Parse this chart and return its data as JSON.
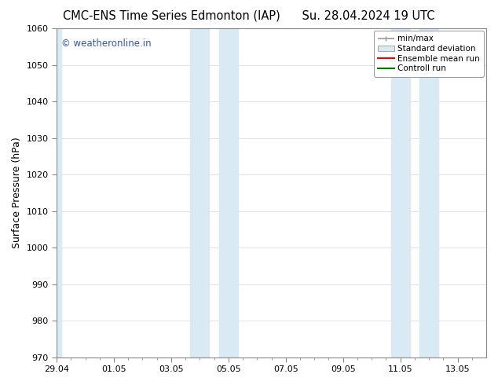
{
  "title_left": "CMC-ENS Time Series Edmonton (IAP)",
  "title_right": "Su. 28.04.2024 19 UTC",
  "ylabel": "Surface Pressure (hPa)",
  "ylim": [
    970,
    1060
  ],
  "yticks": [
    970,
    980,
    990,
    1000,
    1010,
    1020,
    1030,
    1040,
    1050,
    1060
  ],
  "xtick_labels": [
    "29.04",
    "01.05",
    "03.05",
    "05.05",
    "07.05",
    "09.05",
    "11.05",
    "13.05"
  ],
  "xtick_positions": [
    0,
    2,
    4,
    6,
    8,
    10,
    12,
    14
  ],
  "xlim": [
    0,
    15
  ],
  "shaded_regions": [
    {
      "start": -0.1,
      "end": 0.15
    },
    {
      "start": 4.67,
      "end": 5.33
    },
    {
      "start": 5.67,
      "end": 6.33
    },
    {
      "start": 11.67,
      "end": 12.33
    },
    {
      "start": 12.67,
      "end": 13.33
    }
  ],
  "shaded_color": "#daeaf5",
  "watermark_text": "© weatheronline.in",
  "watermark_color": "#3355bb",
  "legend_labels": [
    "min/max",
    "Standard deviation",
    "Ensemble mean run",
    "Controll run"
  ],
  "legend_minmax_color": "#999999",
  "legend_std_color": "#daeaf5",
  "legend_ens_color": "#ff0000",
  "legend_ctrl_color": "#007700",
  "bg_color": "#ffffff",
  "grid_color": "#dddddd",
  "spine_color": "#888888",
  "title_fontsize": 10.5,
  "tick_fontsize": 8,
  "ylabel_fontsize": 9,
  "watermark_fontsize": 8.5,
  "legend_fontsize": 7.5
}
